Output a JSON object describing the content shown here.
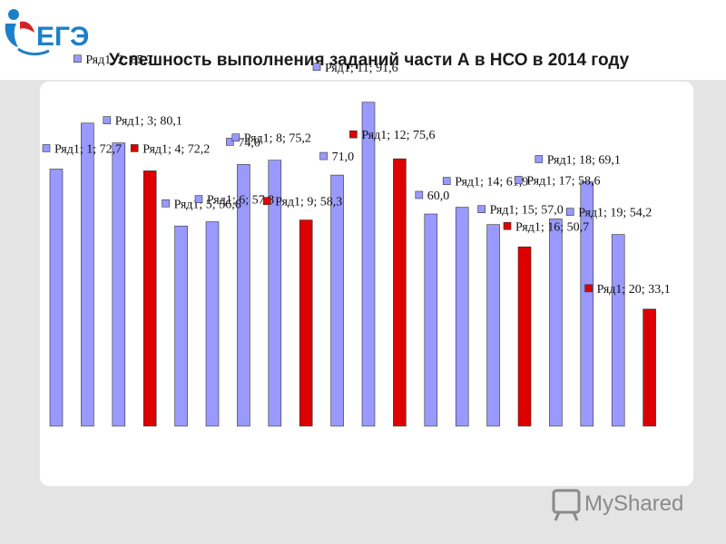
{
  "header": {
    "title": "Успешность выполнения заданий части А в НСО в 2014 году",
    "logo_text": "ЕГЭ"
  },
  "watermark": {
    "text": "MyShared"
  },
  "colors": {
    "bar_default": "#9999ff",
    "bar_highlight": "#dd0000",
    "bar_stroke": "#333333",
    "label_marker_default": "#9999ff",
    "label_marker_highlight": "#dd0000",
    "logo_blue": "#1e7fc8",
    "logo_red": "#d2232a"
  },
  "chart_data": {
    "type": "bar",
    "categories": [
      "1",
      "2",
      "3",
      "4",
      "5",
      "6",
      "7",
      "8",
      "9",
      "10",
      "11",
      "12",
      "13",
      "14",
      "15",
      "16",
      "17",
      "18",
      "19",
      "20"
    ],
    "series": [
      {
        "name": "Ряд1",
        "values": [
          72.7,
          85.7,
          80.1,
          72.2,
          56.6,
          57.8,
          74.0,
          75.2,
          58.3,
          71.0,
          91.6,
          75.6,
          60.0,
          61.9,
          57.0,
          50.7,
          58.6,
          69.1,
          54.2,
          33.1
        ]
      }
    ],
    "highlighted_categories": [
      "4",
      "9",
      "12",
      "16",
      "20"
    ],
    "data_labels": [
      "Ряд1; 1; 72,7",
      "Ряд1; 2; 85,7",
      "Ряд1; 3; 80,1",
      "Ряд1; 4; 72,2",
      "Ряд1; 5; 56,6",
      "Ряд1; 6; 57,8",
      "74,0",
      "Ряд1; 8; 75,2",
      "Ряд1; 9; 58,3",
      "71,0",
      "Ряд1; 11; 91,6",
      "Ряд1; 12; 75,6",
      "60,0",
      "Ряд1; 14; 61,9",
      "Ряд1; 15; 57,0",
      "Ряд1; 16; 50,7",
      "Ряд1; 17; 58,6",
      "Ряд1; 18; 69,1",
      "Ряд1; 19; 54,2",
      "Ряд1; 20; 33,1"
    ],
    "ylim": [
      0,
      100
    ],
    "xlabel": "",
    "ylabel": "",
    "grid": false,
    "legend": "none"
  }
}
